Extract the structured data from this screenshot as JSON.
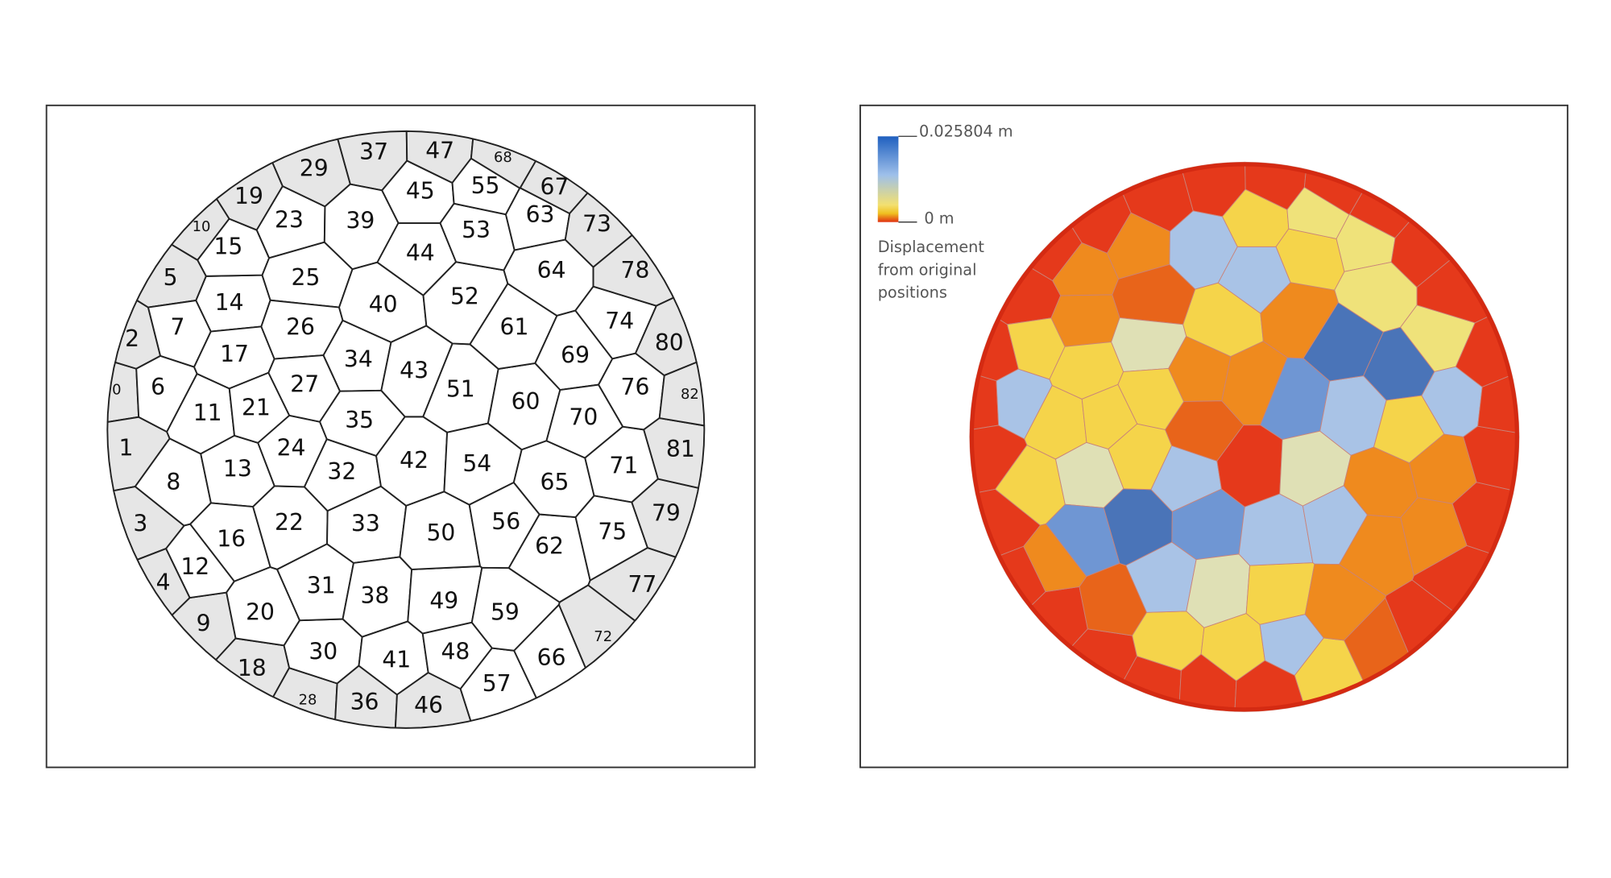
{
  "left_panel": {
    "cell_labels": [
      "0",
      "1",
      "2",
      "3",
      "4",
      "5",
      "6",
      "7",
      "8",
      "9",
      "10",
      "11",
      "12",
      "13",
      "14",
      "15",
      "16",
      "17",
      "18",
      "19",
      "20",
      "21",
      "22",
      "23",
      "24",
      "25",
      "26",
      "27",
      "28",
      "29",
      "30",
      "31",
      "32",
      "33",
      "34",
      "35",
      "36",
      "37",
      "38",
      "39",
      "40",
      "41",
      "42",
      "43",
      "44",
      "45",
      "46",
      "47",
      "48",
      "49",
      "50",
      "51",
      "52",
      "53",
      "54",
      "55",
      "56",
      "57",
      "59",
      "60",
      "61",
      "62",
      "63",
      "64",
      "65",
      "66",
      "67",
      "68",
      "69",
      "70",
      "71",
      "72",
      "73",
      "74",
      "75",
      "76",
      "77",
      "78",
      "79",
      "80",
      "81",
      "82"
    ]
  },
  "right_panel": {
    "legend": {
      "max_label": "0.025804 m",
      "min_label": "0 m",
      "caption": [
        "Displacement",
        "from original",
        "positions"
      ],
      "colors": [
        "#1f5fbf",
        "#9ec0ea",
        "#f3e070",
        "#f0c020",
        "#e03010"
      ]
    },
    "cell_colors": [
      "#e5391b",
      "#e5391b",
      "#e5391b",
      "#e5391b",
      "#e5391b",
      "#e5391b",
      "#a9c3e6",
      "#f5d44a",
      "#f5d44a",
      "#e5391b",
      "#e5391b",
      "#f5d44a",
      "#ef8a1e",
      "#dfe0b5",
      "#ef8a1e",
      "#ef8a1e",
      "#6f96d3",
      "#f5d44a",
      "#e5391b",
      "#e5391b",
      "#e8641a",
      "#f5d44a",
      "#4a74b8",
      "#ef8a1e",
      "#f5d44a",
      "#e8641a",
      "#dfe0b5",
      "#f5d44a",
      "#e5391b",
      "#e5391b",
      "#f5d44a",
      "#a9c3e6",
      "#a9c3e6",
      "#6f96d3",
      "#ef8a1e",
      "#e8641a",
      "#e5391b",
      "#e5391b",
      "#dfe0b5",
      "#a9c3e6",
      "#f5d44a",
      "#f5d44a",
      "#e5391b",
      "#ef8a1e",
      "#a9c3e6",
      "#f5d44a",
      "#e5391b",
      "#e5391b",
      "#a9c3e6",
      "#f5d44a",
      "#a9c3e6",
      "#6f96d3",
      "#ef8a1e",
      "#f5d44a",
      "#dfe0b5",
      "#efe27a",
      "#a9c3e6",
      "#f5d44a",
      "#ef8a1e",
      "#a9c3e6",
      "#4a74b8",
      "#ef8a1e",
      "#efe27a",
      "#efe27a",
      "#ef8a1e",
      "#e8641a",
      "#e5391b",
      "#e5391b",
      "#4a74b8",
      "#f5d44a",
      "#ef8a1e",
      "#e5391b",
      "#e5391b",
      "#efe27a",
      "#ef8a1e",
      "#a9c3e6",
      "#e5391b",
      "#e5391b",
      "#e5391b",
      "#e5391b",
      "#e5391b",
      "#e5391b"
    ]
  }
}
